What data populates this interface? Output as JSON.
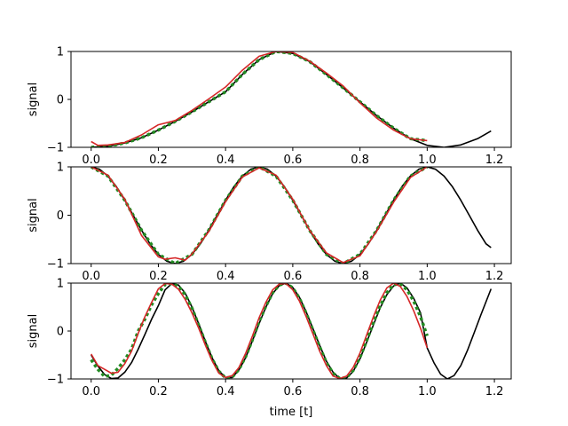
{
  "chart_data": [
    {
      "type": "line",
      "ylabel": "signal",
      "xlabel": "",
      "xlim": [
        -0.06,
        1.25
      ],
      "ylim": [
        -1,
        1
      ],
      "x_ticks": [
        "0.0",
        "0.2",
        "0.4",
        "0.6",
        "0.8",
        "1.0",
        "1.2"
      ],
      "y_ticks": [
        "1",
        "0",
        "−1"
      ],
      "series": [
        {
          "color": "#000000",
          "style": "solid",
          "x": [
            0.0,
            0.05,
            0.1,
            0.15,
            0.2,
            0.25,
            0.3,
            0.35,
            0.4,
            0.45,
            0.5,
            0.55,
            0.6,
            0.65,
            0.7,
            0.75,
            0.8,
            0.85,
            0.9,
            0.95,
            1.0,
            1.05,
            1.1,
            1.15,
            1.19
          ],
          "y": [
            -1.0,
            -0.98,
            -0.91,
            -0.8,
            -0.64,
            -0.46,
            -0.26,
            -0.05,
            0.16,
            0.52,
            0.83,
            1.0,
            0.96,
            0.79,
            0.52,
            0.24,
            -0.05,
            -0.34,
            -0.6,
            -0.82,
            -0.96,
            -1.0,
            -0.95,
            -0.82,
            -0.66
          ]
        },
        {
          "color": "#228b22",
          "style": "dotted",
          "x": [
            0.0,
            0.05,
            0.1,
            0.15,
            0.2,
            0.25,
            0.3,
            0.35,
            0.4,
            0.45,
            0.5,
            0.55,
            0.6,
            0.65,
            0.7,
            0.75,
            0.8,
            0.85,
            0.9,
            0.95,
            1.0
          ],
          "y": [
            -1.0,
            -0.98,
            -0.91,
            -0.8,
            -0.64,
            -0.46,
            -0.26,
            -0.05,
            0.16,
            0.52,
            0.83,
            1.0,
            0.96,
            0.79,
            0.52,
            0.24,
            -0.05,
            -0.34,
            -0.6,
            -0.82,
            -0.86
          ]
        },
        {
          "color": "#d62728",
          "style": "solid",
          "x": [
            0.0,
            0.02,
            0.05,
            0.1,
            0.15,
            0.2,
            0.25,
            0.3,
            0.35,
            0.4,
            0.45,
            0.5,
            0.55,
            0.6,
            0.65,
            0.7,
            0.75,
            0.8,
            0.85,
            0.9,
            0.95,
            1.0
          ],
          "y": [
            -0.88,
            -0.96,
            -0.95,
            -0.9,
            -0.74,
            -0.53,
            -0.44,
            -0.23,
            0.01,
            0.26,
            0.61,
            0.9,
            1.0,
            0.98,
            0.8,
            0.55,
            0.28,
            -0.07,
            -0.39,
            -0.64,
            -0.82,
            -0.86
          ]
        }
      ]
    },
    {
      "type": "line",
      "ylabel": "signal",
      "xlabel": "",
      "xlim": [
        -0.06,
        1.25
      ],
      "ylim": [
        -1,
        1
      ],
      "x_ticks": [
        "0.0",
        "0.2",
        "0.4",
        "0.6",
        "0.8",
        "1.0",
        "1.2"
      ],
      "y_ticks": [
        "1",
        "0",
        "−1"
      ],
      "series": [
        {
          "color": "#000000",
          "style": "solid",
          "x": [
            0.0,
            0.025,
            0.05,
            0.075,
            0.1,
            0.125,
            0.15,
            0.175,
            0.2,
            0.225,
            0.25,
            0.275,
            0.3,
            0.325,
            0.35,
            0.375,
            0.4,
            0.425,
            0.45,
            0.475,
            0.5,
            0.525,
            0.55,
            0.575,
            0.6,
            0.625,
            0.65,
            0.675,
            0.7,
            0.725,
            0.75,
            0.775,
            0.8,
            0.825,
            0.85,
            0.875,
            0.9,
            0.925,
            0.95,
            0.975,
            1.0,
            1.025,
            1.05,
            1.075,
            1.1,
            1.125,
            1.15,
            1.175,
            1.19
          ],
          "y": [
            1.0,
            0.95,
            0.81,
            0.59,
            0.31,
            0.0,
            -0.31,
            -0.59,
            -0.81,
            -0.95,
            -1.0,
            -0.95,
            -0.81,
            -0.59,
            -0.31,
            0.0,
            0.31,
            0.59,
            0.81,
            0.95,
            1.0,
            0.95,
            0.81,
            0.59,
            0.31,
            0.0,
            -0.31,
            -0.59,
            -0.81,
            -0.95,
            -1.0,
            -0.95,
            -0.81,
            -0.59,
            -0.31,
            0.0,
            0.31,
            0.59,
            0.81,
            0.95,
            1.0,
            0.95,
            0.81,
            0.59,
            0.31,
            0.0,
            -0.31,
            -0.59,
            -0.67
          ]
        },
        {
          "color": "#228b22",
          "style": "dotted",
          "x": [
            0.0,
            0.05,
            0.1,
            0.15,
            0.2,
            0.25,
            0.3,
            0.35,
            0.4,
            0.45,
            0.5,
            0.55,
            0.6,
            0.65,
            0.7,
            0.75,
            0.8,
            0.85,
            0.9,
            0.95,
            1.0
          ],
          "y": [
            1.0,
            0.81,
            0.31,
            -0.31,
            -0.81,
            -1.0,
            -0.81,
            -0.31,
            0.31,
            0.81,
            1.0,
            0.81,
            0.31,
            -0.31,
            -0.81,
            -1.0,
            -0.81,
            -0.31,
            0.31,
            0.81,
            1.0
          ]
        },
        {
          "color": "#d62728",
          "style": "solid",
          "x": [
            0.0,
            0.05,
            0.1,
            0.15,
            0.2,
            0.22,
            0.25,
            0.28,
            0.3,
            0.35,
            0.4,
            0.45,
            0.5,
            0.55,
            0.6,
            0.65,
            0.7,
            0.75,
            0.8,
            0.85,
            0.9,
            0.95,
            1.0
          ],
          "y": [
            1.0,
            0.83,
            0.33,
            -0.42,
            -0.86,
            -0.91,
            -0.88,
            -0.93,
            -0.8,
            -0.34,
            0.28,
            0.79,
            0.98,
            0.83,
            0.33,
            -0.31,
            -0.78,
            -0.98,
            -0.84,
            -0.33,
            0.27,
            0.78,
            1.0
          ]
        }
      ]
    },
    {
      "type": "line",
      "ylabel": "signal",
      "xlabel": "time [t]",
      "xlim": [
        -0.06,
        1.25
      ],
      "ylim": [
        -1,
        1
      ],
      "x_ticks": [
        "0.0",
        "0.2",
        "0.4",
        "0.6",
        "0.8",
        "1.0",
        "1.2"
      ],
      "y_ticks": [
        "1",
        "0",
        "−1"
      ],
      "series": [
        {
          "color": "#000000",
          "style": "solid",
          "x": [
            0.0,
            0.02,
            0.04,
            0.06,
            0.08,
            0.1,
            0.12,
            0.14,
            0.16,
            0.18,
            0.2,
            0.22,
            0.24,
            0.26,
            0.28,
            0.3,
            0.32,
            0.34,
            0.36,
            0.38,
            0.4,
            0.42,
            0.44,
            0.46,
            0.48,
            0.5,
            0.52,
            0.54,
            0.56,
            0.58,
            0.6,
            0.62,
            0.64,
            0.66,
            0.68,
            0.7,
            0.72,
            0.74,
            0.76,
            0.78,
            0.8,
            0.82,
            0.84,
            0.86,
            0.88,
            0.9,
            0.92,
            0.94,
            0.96,
            0.98,
            1.0,
            1.02,
            1.04,
            1.06,
            1.08,
            1.1,
            1.12,
            1.14,
            1.16,
            1.19
          ],
          "y": [
            -0.5,
            -0.73,
            -0.91,
            -0.99,
            -0.98,
            -0.86,
            -0.66,
            -0.38,
            -0.07,
            0.25,
            0.53,
            0.86,
            0.99,
            0.96,
            0.79,
            0.5,
            0.15,
            -0.22,
            -0.56,
            -0.83,
            -0.97,
            -0.97,
            -0.81,
            -0.55,
            -0.2,
            0.16,
            0.5,
            0.78,
            0.95,
            1.0,
            0.91,
            0.7,
            0.4,
            0.05,
            -0.3,
            -0.63,
            -0.86,
            -0.99,
            -0.98,
            -0.84,
            -0.58,
            -0.23,
            0.13,
            0.48,
            0.76,
            0.94,
            1.0,
            0.9,
            0.68,
            0.38,
            -0.35,
            -0.66,
            -0.9,
            -1.0,
            -0.93,
            -0.72,
            -0.4,
            -0.03,
            0.34,
            0.88
          ]
        },
        {
          "color": "#228b22",
          "style": "dotted",
          "x": [
            0.0,
            0.02,
            0.04,
            0.06,
            0.08,
            0.1,
            0.12,
            0.14,
            0.16,
            0.18,
            0.2,
            0.22,
            0.24,
            0.26,
            0.28,
            0.3,
            0.32,
            0.34,
            0.36,
            0.38,
            0.4,
            0.42,
            0.44,
            0.46,
            0.48,
            0.5,
            0.52,
            0.54,
            0.56,
            0.58,
            0.6,
            0.62,
            0.64,
            0.66,
            0.68,
            0.7,
            0.72,
            0.74,
            0.76,
            0.78,
            0.8,
            0.82,
            0.84,
            0.86,
            0.88,
            0.9,
            0.92,
            0.94,
            0.96,
            0.98,
            1.0
          ],
          "y": [
            -0.6,
            -0.8,
            -0.95,
            -0.92,
            -0.78,
            -0.6,
            -0.38,
            0.0,
            0.25,
            0.55,
            0.78,
            0.97,
            0.99,
            0.93,
            0.76,
            0.48,
            0.12,
            -0.24,
            -0.58,
            -0.84,
            -0.98,
            -0.96,
            -0.8,
            -0.53,
            -0.18,
            0.2,
            0.52,
            0.8,
            0.96,
            1.0,
            0.9,
            0.68,
            0.37,
            0.02,
            -0.33,
            -0.66,
            -0.88,
            -0.99,
            -0.97,
            -0.82,
            -0.55,
            -0.2,
            0.18,
            0.52,
            0.8,
            0.97,
            0.98,
            0.86,
            0.62,
            0.3,
            -0.1
          ]
        },
        {
          "color": "#d62728",
          "style": "solid",
          "x": [
            0.0,
            0.02,
            0.04,
            0.06,
            0.08,
            0.1,
            0.12,
            0.14,
            0.16,
            0.18,
            0.2,
            0.22,
            0.24,
            0.26,
            0.28,
            0.3,
            0.32,
            0.34,
            0.36,
            0.38,
            0.4,
            0.42,
            0.44,
            0.46,
            0.48,
            0.5,
            0.52,
            0.54,
            0.56,
            0.58,
            0.6,
            0.62,
            0.64,
            0.66,
            0.68,
            0.7,
            0.72,
            0.74,
            0.76,
            0.78,
            0.8,
            0.82,
            0.84,
            0.86,
            0.88,
            0.9,
            0.92,
            0.94,
            0.96,
            0.98,
            1.0
          ],
          "y": [
            -0.48,
            -0.72,
            -0.8,
            -0.88,
            -0.86,
            -0.68,
            -0.42,
            -0.05,
            0.3,
            0.6,
            0.88,
            0.99,
            0.98,
            0.87,
            0.66,
            0.38,
            0.06,
            -0.3,
            -0.62,
            -0.88,
            -0.97,
            -0.93,
            -0.76,
            -0.46,
            -0.1,
            0.28,
            0.6,
            0.86,
            0.98,
            0.99,
            0.86,
            0.62,
            0.3,
            -0.06,
            -0.42,
            -0.72,
            -0.94,
            -0.99,
            -0.94,
            -0.76,
            -0.46,
            -0.08,
            0.3,
            0.64,
            0.9,
            1.0,
            0.93,
            0.72,
            0.42,
            0.06,
            -0.35
          ]
        }
      ]
    }
  ]
}
